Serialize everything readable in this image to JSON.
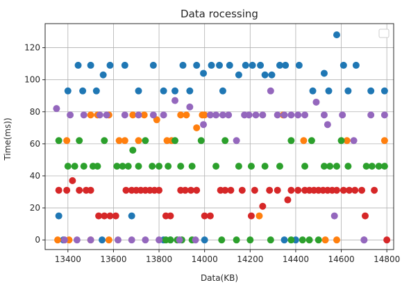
{
  "chart_data": {
    "type": "scatter",
    "title": "Data rocessing",
    "xlabel": "Data(KB)",
    "ylabel": "Time(ms))",
    "xlim": [
      13300,
      14830
    ],
    "ylim": [
      -6,
      135
    ],
    "xticks": [
      13400,
      13600,
      13800,
      14000,
      14200,
      14400,
      14600,
      14800
    ],
    "yticks": [
      0,
      20,
      40,
      60,
      80,
      100,
      120
    ],
    "grid": true,
    "legend": "top-right",
    "series": [
      {
        "color": "#1f77b4",
        "points": [
          [
            13360,
            15
          ],
          [
            13380,
            0
          ],
          [
            13400,
            93
          ],
          [
            13445,
            109
          ],
          [
            13465,
            93
          ],
          [
            13500,
            109
          ],
          [
            13525,
            93
          ],
          [
            13555,
            103
          ],
          [
            13585,
            109
          ],
          [
            13650,
            109
          ],
          [
            13680,
            15
          ],
          [
            13710,
            93
          ],
          [
            13775,
            109
          ],
          [
            13820,
            93
          ],
          [
            13870,
            93
          ],
          [
            13905,
            109
          ],
          [
            13935,
            93
          ],
          [
            13965,
            109
          ],
          [
            13995,
            104
          ],
          [
            14030,
            109
          ],
          [
            14065,
            109
          ],
          [
            14080,
            93
          ],
          [
            14110,
            109
          ],
          [
            14150,
            103
          ],
          [
            14180,
            109
          ],
          [
            14210,
            109
          ],
          [
            14245,
            109
          ],
          [
            14265,
            103
          ],
          [
            14295,
            103
          ],
          [
            14330,
            109
          ],
          [
            14355,
            109
          ],
          [
            14415,
            109
          ],
          [
            14475,
            93
          ],
          [
            14525,
            104
          ],
          [
            14545,
            93
          ],
          [
            14580,
            128
          ],
          [
            14610,
            109
          ],
          [
            14630,
            93
          ],
          [
            14665,
            109
          ],
          [
            14730,
            93
          ],
          [
            14790,
            93
          ],
          [
            13550,
            0
          ],
          [
            13820,
            0
          ],
          [
            13850,
            0
          ],
          [
            14000,
            0
          ],
          [
            14350,
            0
          ],
          [
            14400,
            0
          ]
        ]
      },
      {
        "color": "#ff7f0e",
        "points": [
          [
            13355,
            0
          ],
          [
            13395,
            62
          ],
          [
            13405,
            0
          ],
          [
            13500,
            78
          ],
          [
            13530,
            78
          ],
          [
            13580,
            78
          ],
          [
            13625,
            62
          ],
          [
            13650,
            62
          ],
          [
            13685,
            78
          ],
          [
            13710,
            62
          ],
          [
            13735,
            78
          ],
          [
            13790,
            75
          ],
          [
            13835,
            62
          ],
          [
            13855,
            62
          ],
          [
            13895,
            78
          ],
          [
            13920,
            78
          ],
          [
            13965,
            70
          ],
          [
            13990,
            78
          ],
          [
            14000,
            78
          ],
          [
            14240,
            15
          ],
          [
            14345,
            78
          ],
          [
            14435,
            62
          ],
          [
            14530,
            0
          ],
          [
            14580,
            0
          ],
          [
            14625,
            62
          ],
          [
            14790,
            62
          ],
          [
            13500,
            0
          ],
          [
            13580,
            0
          ]
        ]
      },
      {
        "color": "#2ca02c",
        "points": [
          [
            13360,
            62
          ],
          [
            13400,
            46
          ],
          [
            13430,
            46
          ],
          [
            13450,
            62
          ],
          [
            13470,
            46
          ],
          [
            13510,
            46
          ],
          [
            13530,
            46
          ],
          [
            13560,
            62
          ],
          [
            13615,
            46
          ],
          [
            13640,
            46
          ],
          [
            13665,
            46
          ],
          [
            13685,
            56
          ],
          [
            13710,
            46
          ],
          [
            13740,
            62
          ],
          [
            13770,
            46
          ],
          [
            13800,
            46
          ],
          [
            13840,
            46
          ],
          [
            13870,
            62
          ],
          [
            13895,
            46
          ],
          [
            13945,
            46
          ],
          [
            13985,
            62
          ],
          [
            14050,
            46
          ],
          [
            14090,
            62
          ],
          [
            14150,
            46
          ],
          [
            14205,
            46
          ],
          [
            14265,
            46
          ],
          [
            14330,
            46
          ],
          [
            14380,
            62
          ],
          [
            14440,
            46
          ],
          [
            14470,
            62
          ],
          [
            14525,
            46
          ],
          [
            14550,
            46
          ],
          [
            14580,
            46
          ],
          [
            14600,
            62
          ],
          [
            14630,
            46
          ],
          [
            14710,
            46
          ],
          [
            14735,
            46
          ],
          [
            14765,
            46
          ],
          [
            14790,
            46
          ],
          [
            13830,
            0
          ],
          [
            13850,
            0
          ],
          [
            13880,
            0
          ],
          [
            13900,
            0
          ],
          [
            13945,
            0
          ],
          [
            14075,
            0
          ],
          [
            14140,
            0
          ],
          [
            14200,
            0
          ],
          [
            14290,
            0
          ],
          [
            14380,
            0
          ],
          [
            14430,
            0
          ],
          [
            14460,
            0
          ],
          [
            14500,
            0
          ]
        ]
      },
      {
        "color": "#d62728",
        "points": [
          [
            13360,
            31
          ],
          [
            13395,
            31
          ],
          [
            13420,
            37
          ],
          [
            13450,
            31
          ],
          [
            13480,
            31
          ],
          [
            13500,
            31
          ],
          [
            13535,
            15
          ],
          [
            13560,
            15
          ],
          [
            13585,
            15
          ],
          [
            13610,
            15
          ],
          [
            13655,
            31
          ],
          [
            13680,
            31
          ],
          [
            13700,
            31
          ],
          [
            13720,
            31
          ],
          [
            13740,
            31
          ],
          [
            13760,
            31
          ],
          [
            13780,
            31
          ],
          [
            13800,
            31
          ],
          [
            13830,
            15
          ],
          [
            13850,
            15
          ],
          [
            13895,
            31
          ],
          [
            13915,
            31
          ],
          [
            13940,
            31
          ],
          [
            13965,
            31
          ],
          [
            14000,
            15
          ],
          [
            14025,
            15
          ],
          [
            14070,
            31
          ],
          [
            14090,
            31
          ],
          [
            14115,
            31
          ],
          [
            14165,
            31
          ],
          [
            14205,
            15
          ],
          [
            14220,
            31
          ],
          [
            14255,
            21
          ],
          [
            14285,
            31
          ],
          [
            14320,
            31
          ],
          [
            14365,
            25
          ],
          [
            14380,
            31
          ],
          [
            14410,
            31
          ],
          [
            14440,
            31
          ],
          [
            14460,
            31
          ],
          [
            14480,
            31
          ],
          [
            14500,
            31
          ],
          [
            14520,
            31
          ],
          [
            14540,
            31
          ],
          [
            14560,
            31
          ],
          [
            14580,
            31
          ],
          [
            14610,
            31
          ],
          [
            14635,
            31
          ],
          [
            14660,
            31
          ],
          [
            14690,
            31
          ],
          [
            14705,
            15
          ],
          [
            14745,
            31
          ],
          [
            14800,
            0
          ]
        ]
      },
      {
        "color": "#9467bd",
        "points": [
          [
            13350,
            82
          ],
          [
            13385,
            0
          ],
          [
            13410,
            78
          ],
          [
            13440,
            0
          ],
          [
            13470,
            78
          ],
          [
            13500,
            0
          ],
          [
            13540,
            78
          ],
          [
            13570,
            78
          ],
          [
            13620,
            0
          ],
          [
            13650,
            78
          ],
          [
            13680,
            0
          ],
          [
            13710,
            78
          ],
          [
            13740,
            0
          ],
          [
            13775,
            78
          ],
          [
            13800,
            0
          ],
          [
            13820,
            78
          ],
          [
            13870,
            87
          ],
          [
            13890,
            0
          ],
          [
            13935,
            83
          ],
          [
            13960,
            0
          ],
          [
            13995,
            72
          ],
          [
            14025,
            78
          ],
          [
            14050,
            78
          ],
          [
            14080,
            78
          ],
          [
            14105,
            78
          ],
          [
            14140,
            62
          ],
          [
            14175,
            78
          ],
          [
            14195,
            78
          ],
          [
            14225,
            78
          ],
          [
            14255,
            78
          ],
          [
            14290,
            93
          ],
          [
            14320,
            78
          ],
          [
            14350,
            78
          ],
          [
            14380,
            78
          ],
          [
            14410,
            78
          ],
          [
            14440,
            78
          ],
          [
            14490,
            86
          ],
          [
            14525,
            78
          ],
          [
            14540,
            72
          ],
          [
            14570,
            15
          ],
          [
            14605,
            78
          ],
          [
            14655,
            62
          ],
          [
            14700,
            0
          ],
          [
            14730,
            78
          ],
          [
            14790,
            78
          ],
          [
            14700,
            0
          ]
        ]
      }
    ]
  }
}
